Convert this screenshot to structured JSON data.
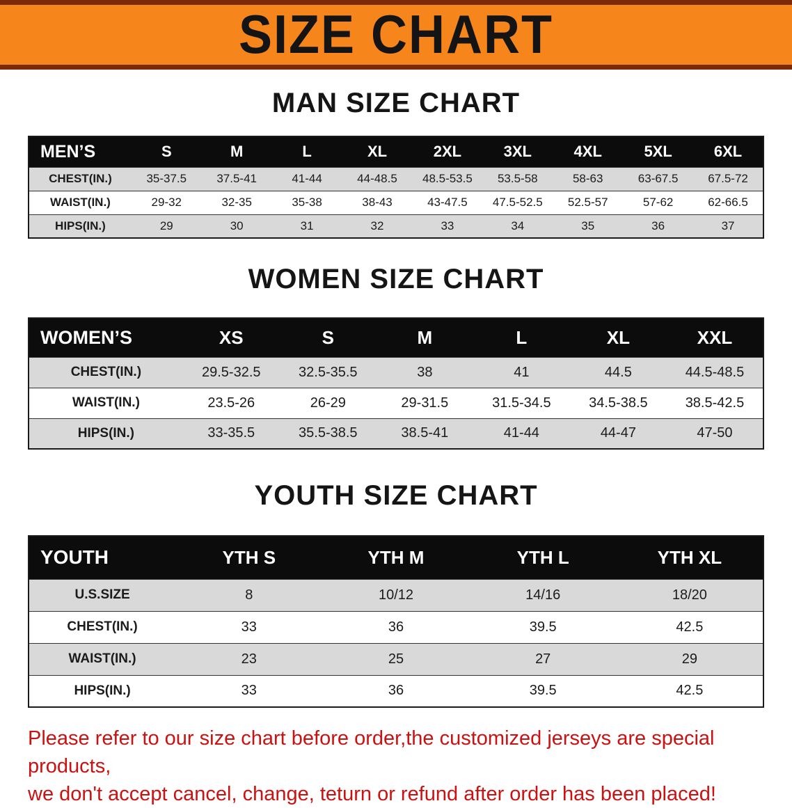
{
  "banner": {
    "title": "SIZE CHART"
  },
  "colors": {
    "banner_background": "#f6851c",
    "banner_edge": "#7d2807",
    "table_header_background": "#0c0c0c",
    "row_shade": "#d9d9d9",
    "notice_text": "#cc1111"
  },
  "sections": [
    {
      "heading": "MAN SIZE CHART",
      "table": {
        "header": [
          "MEN’S",
          "S",
          "M",
          "L",
          "XL",
          "2XL",
          "3XL",
          "4XL",
          "5XL",
          "6XL"
        ],
        "rows": [
          [
            "CHEST(IN.)",
            "35-37.5",
            "37.5-41",
            "41-44",
            "44-48.5",
            "48.5-53.5",
            "53.5-58",
            "58-63",
            "63-67.5",
            "67.5-72"
          ],
          [
            "WAIST(IN.)",
            "29-32",
            "32-35",
            "35-38",
            "38-43",
            "43-47.5",
            "47.5-52.5",
            "52.5-57",
            "57-62",
            "62-66.5"
          ],
          [
            "HIPS(IN.)",
            "29",
            "30",
            "31",
            "32",
            "33",
            "34",
            "35",
            "36",
            "37"
          ]
        ]
      }
    },
    {
      "heading": "WOMEN SIZE CHART",
      "table": {
        "header": [
          "WOMEN’S",
          "XS",
          "S",
          "M",
          "L",
          "XL",
          "XXL"
        ],
        "rows": [
          [
            "CHEST(IN.)",
            "29.5-32.5",
            "32.5-35.5",
            "38",
            "41",
            "44.5",
            "44.5-48.5"
          ],
          [
            "WAIST(IN.)",
            "23.5-26",
            "26-29",
            "29-31.5",
            "31.5-34.5",
            "34.5-38.5",
            "38.5-42.5"
          ],
          [
            "HIPS(IN.)",
            "33-35.5",
            "35.5-38.5",
            "38.5-41",
            "41-44",
            "44-47",
            "47-50"
          ]
        ]
      }
    },
    {
      "heading": "YOUTH SIZE CHART",
      "table": {
        "header": [
          "YOUTH",
          "YTH S",
          "YTH M",
          "YTH L",
          "YTH XL"
        ],
        "rows": [
          [
            "U.S.SIZE",
            "8",
            "10/12",
            "14/16",
            "18/20"
          ],
          [
            "CHEST(IN.)",
            "33",
            "36",
            "39.5",
            "42.5"
          ],
          [
            "WAIST(IN.)",
            "23",
            "25",
            "27",
            "29"
          ],
          [
            "HIPS(IN.)",
            "33",
            "36",
            "39.5",
            "42.5"
          ]
        ]
      }
    }
  ],
  "notice": {
    "lines": [
      "Please refer to our size chart before order,the customized jerseys are special products,",
      "we don't accept cancel, change, teturn or refund after order has been placed!"
    ]
  }
}
